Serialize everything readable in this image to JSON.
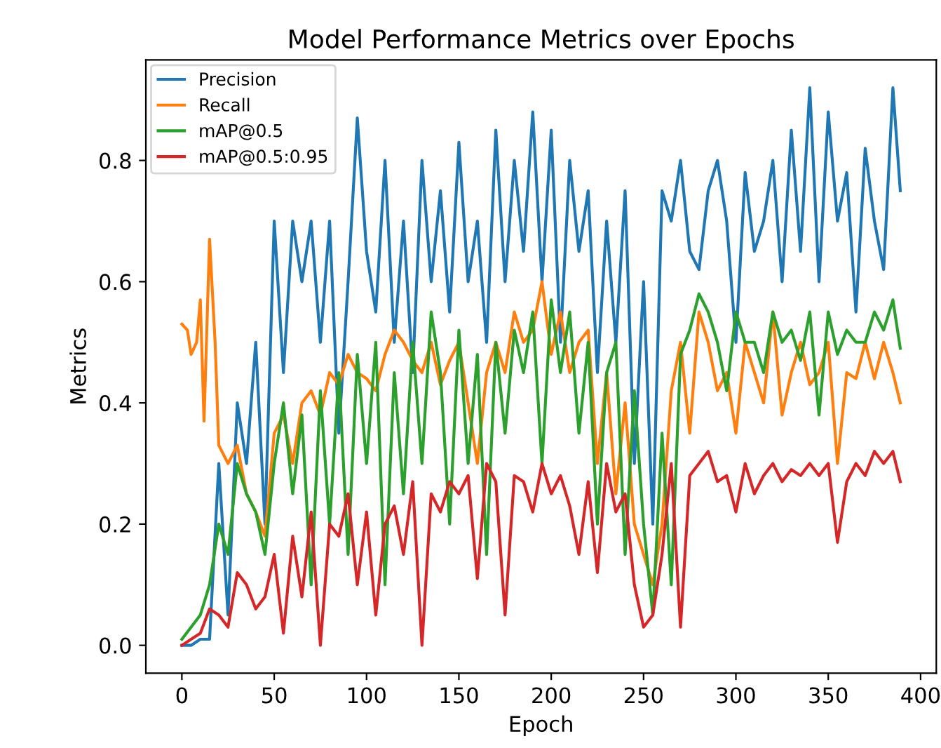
{
  "chart_data": {
    "type": "line",
    "title": "Model Performance Metrics over Epochs",
    "xlabel": "Epoch",
    "ylabel": "Metrics",
    "xlim": [
      -19.5,
      408.5
    ],
    "ylim": [
      -0.046,
      0.966
    ],
    "xticks": [
      0,
      50,
      100,
      150,
      200,
      250,
      300,
      350,
      400
    ],
    "yticks": [
      {
        "value": 0,
        "label": "0.0"
      },
      {
        "value": 0.2,
        "label": "0.2"
      },
      {
        "value": 0.4,
        "label": "0.4"
      },
      {
        "value": 0.6,
        "label": "0.6"
      },
      {
        "value": 0.8,
        "label": "0.8"
      }
    ],
    "legend": "top left",
    "grid": false,
    "line_style": "solid",
    "series": [
      {
        "name": "Precision",
        "color": "#1f77b4",
        "x": [
          0,
          5,
          10,
          15,
          20,
          25,
          30,
          35,
          40,
          45,
          50,
          55,
          60,
          65,
          70,
          75,
          80,
          85,
          90,
          95,
          100,
          105,
          110,
          115,
          120,
          125,
          130,
          135,
          140,
          145,
          150,
          155,
          160,
          165,
          170,
          175,
          180,
          185,
          190,
          195,
          200,
          205,
          210,
          215,
          220,
          225,
          230,
          235,
          240,
          245,
          250,
          255,
          260,
          265,
          270,
          275,
          280,
          285,
          290,
          295,
          300,
          305,
          310,
          315,
          320,
          325,
          330,
          335,
          340,
          345,
          350,
          355,
          360,
          365,
          370,
          375,
          380,
          385,
          389
        ],
        "values": [
          0,
          0,
          0.01,
          0.01,
          0.3,
          0.05,
          0.4,
          0.3,
          0.5,
          0.2,
          0.7,
          0.45,
          0.7,
          0.6,
          0.7,
          0.5,
          0.7,
          0.35,
          0.6,
          0.87,
          0.65,
          0.55,
          0.8,
          0.5,
          0.7,
          0.45,
          0.8,
          0.6,
          0.75,
          0.55,
          0.83,
          0.6,
          0.7,
          0.5,
          0.85,
          0.6,
          0.8,
          0.65,
          0.88,
          0.6,
          0.85,
          0.5,
          0.8,
          0.65,
          0.75,
          0.45,
          0.7,
          0.5,
          0.75,
          0.3,
          0.6,
          0.2,
          0.75,
          0.7,
          0.8,
          0.65,
          0.62,
          0.75,
          0.8,
          0.7,
          0.5,
          0.78,
          0.65,
          0.7,
          0.8,
          0.6,
          0.85,
          0.65,
          0.92,
          0.6,
          0.88,
          0.7,
          0.78,
          0.55,
          0.82,
          0.7,
          0.62,
          0.92,
          0.75
        ]
      },
      {
        "name": "Recall",
        "color": "#ff7f0e",
        "x": [
          0,
          3,
          5,
          8,
          10,
          12,
          15,
          18,
          20,
          25,
          30,
          35,
          40,
          45,
          50,
          55,
          60,
          65,
          70,
          75,
          80,
          85,
          90,
          95,
          100,
          105,
          110,
          115,
          120,
          125,
          130,
          135,
          140,
          145,
          150,
          155,
          160,
          165,
          170,
          175,
          180,
          185,
          190,
          195,
          200,
          205,
          210,
          215,
          220,
          225,
          230,
          235,
          240,
          245,
          250,
          255,
          260,
          265,
          270,
          275,
          280,
          285,
          290,
          295,
          300,
          305,
          310,
          315,
          320,
          325,
          330,
          335,
          340,
          345,
          350,
          355,
          360,
          365,
          370,
          375,
          380,
          385,
          389
        ],
        "values": [
          0.53,
          0.52,
          0.48,
          0.5,
          0.57,
          0.37,
          0.67,
          0.5,
          0.33,
          0.3,
          0.33,
          0.25,
          0.22,
          0.18,
          0.35,
          0.38,
          0.3,
          0.4,
          0.42,
          0.38,
          0.45,
          0.43,
          0.48,
          0.45,
          0.44,
          0.42,
          0.48,
          0.52,
          0.5,
          0.47,
          0.45,
          0.5,
          0.43,
          0.47,
          0.5,
          0.4,
          0.3,
          0.45,
          0.5,
          0.45,
          0.55,
          0.5,
          0.52,
          0.6,
          0.48,
          0.55,
          0.45,
          0.5,
          0.52,
          0.3,
          0.45,
          0.25,
          0.4,
          0.2,
          0.15,
          0.1,
          0.2,
          0.42,
          0.5,
          0.35,
          0.55,
          0.5,
          0.42,
          0.45,
          0.35,
          0.5,
          0.45,
          0.4,
          0.55,
          0.38,
          0.45,
          0.5,
          0.43,
          0.45,
          0.5,
          0.3,
          0.45,
          0.44,
          0.5,
          0.44,
          0.5,
          0.45,
          0.4
        ]
      },
      {
        "name": "mAP@0.5",
        "color": "#2ca02c",
        "x": [
          0,
          5,
          10,
          15,
          20,
          25,
          30,
          35,
          40,
          45,
          50,
          55,
          60,
          65,
          70,
          75,
          80,
          85,
          90,
          95,
          100,
          105,
          110,
          115,
          120,
          125,
          130,
          135,
          140,
          145,
          150,
          155,
          160,
          165,
          170,
          175,
          180,
          185,
          190,
          195,
          200,
          205,
          210,
          215,
          220,
          225,
          230,
          235,
          240,
          245,
          250,
          255,
          260,
          265,
          270,
          275,
          280,
          285,
          290,
          295,
          300,
          305,
          310,
          315,
          320,
          325,
          330,
          335,
          340,
          345,
          350,
          355,
          360,
          365,
          370,
          375,
          380,
          385,
          389
        ],
        "values": [
          0.01,
          0.03,
          0.05,
          0.1,
          0.2,
          0.15,
          0.3,
          0.25,
          0.22,
          0.15,
          0.3,
          0.4,
          0.25,
          0.38,
          0.1,
          0.42,
          0.2,
          0.45,
          0.15,
          0.48,
          0.3,
          0.5,
          0.1,
          0.45,
          0.25,
          0.5,
          0.3,
          0.55,
          0.45,
          0.2,
          0.52,
          0.3,
          0.48,
          0.15,
          0.5,
          0.35,
          0.52,
          0.45,
          0.55,
          0.3,
          0.57,
          0.45,
          0.55,
          0.35,
          0.5,
          0.2,
          0.45,
          0.5,
          0.15,
          0.42,
          0.2,
          0.05,
          0.35,
          0.1,
          0.48,
          0.52,
          0.58,
          0.55,
          0.5,
          0.42,
          0.55,
          0.5,
          0.5,
          0.45,
          0.55,
          0.5,
          0.52,
          0.47,
          0.55,
          0.38,
          0.55,
          0.48,
          0.52,
          0.5,
          0.5,
          0.55,
          0.52,
          0.57,
          0.49
        ]
      },
      {
        "name": "mAP@0.5:0.95",
        "color": "#d62728",
        "x": [
          0,
          5,
          10,
          15,
          20,
          25,
          30,
          35,
          40,
          45,
          50,
          55,
          60,
          65,
          70,
          75,
          80,
          85,
          90,
          95,
          100,
          105,
          110,
          115,
          120,
          125,
          130,
          135,
          140,
          145,
          150,
          155,
          160,
          165,
          170,
          175,
          180,
          185,
          190,
          195,
          200,
          205,
          210,
          215,
          220,
          225,
          230,
          235,
          240,
          245,
          250,
          255,
          260,
          265,
          270,
          275,
          280,
          285,
          290,
          295,
          300,
          305,
          310,
          315,
          320,
          325,
          330,
          335,
          340,
          345,
          350,
          355,
          360,
          365,
          370,
          375,
          380,
          385,
          389
        ],
        "values": [
          0,
          0.01,
          0.02,
          0.06,
          0.05,
          0.03,
          0.12,
          0.1,
          0.06,
          0.08,
          0.15,
          0.02,
          0.18,
          0.08,
          0.22,
          0,
          0.2,
          0.18,
          0.25,
          0.1,
          0.22,
          0.05,
          0.2,
          0.23,
          0.15,
          0.27,
          0,
          0.25,
          0.22,
          0.27,
          0.25,
          0.28,
          0.11,
          0.3,
          0.27,
          0.05,
          0.28,
          0.27,
          0.22,
          0.3,
          0.25,
          0.28,
          0.23,
          0.15,
          0.27,
          0.12,
          0.3,
          0.22,
          0.25,
          0.1,
          0.03,
          0.05,
          0.15,
          0.3,
          0.03,
          0.28,
          0.3,
          0.32,
          0.27,
          0.28,
          0.22,
          0.3,
          0.25,
          0.28,
          0.3,
          0.27,
          0.29,
          0.28,
          0.3,
          0.28,
          0.3,
          0.17,
          0.27,
          0.3,
          0.28,
          0.32,
          0.3,
          0.32,
          0.27
        ]
      }
    ]
  }
}
